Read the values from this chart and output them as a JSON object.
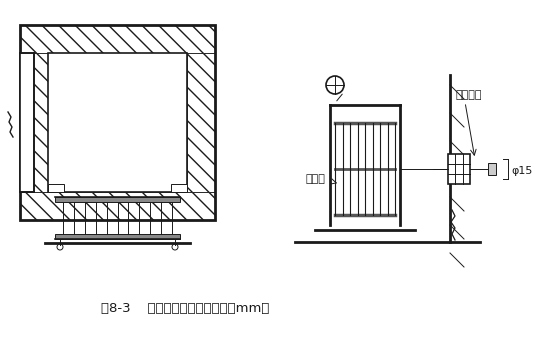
{
  "bg_color": "#ffffff",
  "line_color": "#1a1a1a",
  "caption": "图8-3    电梯井口防护门（单位：mm）",
  "label_fumen": "铁栅门",
  "label_bolts": "膨胀螺栓",
  "label_phi": "φ15",
  "fig_width": 5.52,
  "fig_height": 3.46
}
